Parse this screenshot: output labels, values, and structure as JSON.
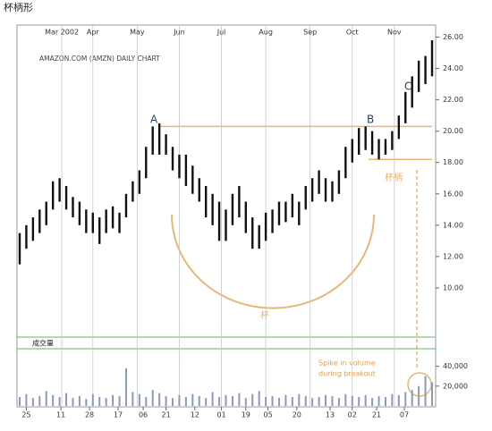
{
  "header": {
    "title": "杯柄形"
  },
  "chart_data": {
    "type": "hilo",
    "title": "AMAZON.COM (AMZN) DAILY CHART",
    "xlim": [
      0,
      186
    ],
    "month_ticks": [
      {
        "value": 19,
        "label": "Mar 2002"
      },
      {
        "value": 33,
        "label": "Apr"
      },
      {
        "value": 53,
        "label": "May"
      },
      {
        "value": 72,
        "label": "Jun"
      },
      {
        "value": 91,
        "label": "Jul"
      },
      {
        "value": 111,
        "label": "Aug"
      },
      {
        "value": 131,
        "label": "Sep"
      },
      {
        "value": 150,
        "label": "Oct"
      },
      {
        "value": 169,
        "label": "Nov"
      }
    ],
    "xticks": [
      {
        "value": 3,
        "label": "25"
      },
      {
        "value": 18.6,
        "label": "11"
      },
      {
        "value": 31.5,
        "label": "28"
      },
      {
        "value": 44.4,
        "label": "17"
      },
      {
        "value": 55.7,
        "label": "06"
      },
      {
        "value": 66,
        "label": "21"
      },
      {
        "value": 79,
        "label": "12"
      },
      {
        "value": 91,
        "label": "01"
      },
      {
        "value": 102,
        "label": "19"
      },
      {
        "value": 112,
        "label": "05"
      },
      {
        "value": 125,
        "label": "20"
      },
      {
        "value": 140,
        "label": "13"
      },
      {
        "value": 150,
        "label": "02"
      },
      {
        "value": 161,
        "label": "21"
      },
      {
        "value": 173.5,
        "label": "07"
      }
    ],
    "ylim": [
      8.4,
      26.6
    ],
    "yticks": [
      {
        "value": 10,
        "label": "10.00"
      },
      {
        "value": 12,
        "label": "12.00"
      },
      {
        "value": 14,
        "label": "14.00"
      },
      {
        "value": 16,
        "label": "16.00"
      },
      {
        "value": 18,
        "label": "18.00"
      },
      {
        "value": 20,
        "label": "20.00"
      },
      {
        "value": 22,
        "label": "22.00"
      },
      {
        "value": 24,
        "label": "24.00"
      },
      {
        "value": 26,
        "label": "26.00"
      }
    ],
    "x": [
      0,
      3,
      6,
      9,
      12,
      15,
      18,
      21,
      24,
      27,
      30,
      33,
      36,
      39,
      42,
      45,
      48,
      51,
      54,
      57,
      60,
      63,
      66,
      69,
      72,
      75,
      78,
      81,
      84,
      87,
      90,
      93,
      96,
      99,
      102,
      105,
      108,
      111,
      114,
      117,
      120,
      123,
      126,
      129,
      132,
      135,
      138,
      141,
      144,
      147,
      150,
      153,
      156,
      159,
      162,
      165,
      168,
      171,
      174,
      177,
      180,
      183,
      186
    ],
    "low": [
      11.5,
      12.5,
      13,
      13.5,
      14,
      15,
      15.5,
      15,
      14.5,
      14,
      13.5,
      13.5,
      12.8,
      13.5,
      13.8,
      13.5,
      14.5,
      15.5,
      16,
      17,
      18.5,
      18.5,
      18.5,
      17.5,
      17,
      16.5,
      16,
      15.5,
      14.5,
      14,
      13,
      13,
      14,
      14.5,
      13.5,
      12.5,
      12.5,
      13,
      13.5,
      14,
      14.2,
      14.5,
      14,
      15,
      15.5,
      16,
      15.5,
      15.5,
      16,
      17,
      18,
      18.5,
      18.8,
      18.5,
      18.2,
      18.5,
      18.8,
      19.5,
      20.5,
      21.5,
      22.5,
      23,
      23.5
    ],
    "high": [
      13.5,
      14,
      14.5,
      15,
      15.5,
      16.8,
      17,
      16.5,
      15.8,
      15.5,
      15,
      14.8,
      14.5,
      15,
      15.2,
      14.8,
      16,
      16.8,
      17.5,
      19,
      20.3,
      20.5,
      19.8,
      19,
      18.5,
      18.5,
      17.8,
      17,
      16.5,
      16,
      15.5,
      15,
      16,
      16.5,
      15.5,
      14.5,
      14,
      14.8,
      15,
      15.5,
      15.5,
      16,
      15.5,
      16.5,
      17,
      17.5,
      17,
      16.8,
      17.5,
      19,
      19.5,
      20.2,
      20.3,
      20,
      19.5,
      19.5,
      20,
      21,
      22.5,
      23.5,
      24.5,
      24.8,
      25.8
    ],
    "color": "#111111",
    "volume": [
      9000,
      12000,
      8000,
      10000,
      15000,
      11000,
      9000,
      13000,
      8000,
      10000,
      7000,
      12000,
      9000,
      8000,
      11000,
      10000,
      38000,
      14000,
      12000,
      9000,
      16000,
      13000,
      10000,
      8000,
      11000,
      9000,
      12000,
      10000,
      8000,
      14000,
      9000,
      11000,
      10000,
      13000,
      8000,
      12000,
      15000,
      9000,
      10000,
      8000,
      11000,
      9000,
      12000,
      10000,
      8000,
      9000,
      11000,
      10000,
      8000,
      12000,
      10000,
      9000,
      11000,
      8000,
      10000,
      9000,
      12000,
      11000,
      14000,
      16000,
      20000,
      30000,
      24000
    ],
    "vlim": [
      0,
      55000
    ],
    "vticks": [
      {
        "value": 20000,
        "label": "20,000"
      },
      {
        "value": 40000,
        "label": "40,000"
      }
    ],
    "volume_color": "#8a9ab8",
    "volume_label": "成交量",
    "rim_level": 20.3,
    "handle_low": 18.2,
    "annotations": {
      "a": "A",
      "b": "B",
      "c": "C",
      "cup": "杯",
      "handle": "杯柄",
      "spike_1": "Spike in volume",
      "spike_2": "during breakout"
    }
  }
}
